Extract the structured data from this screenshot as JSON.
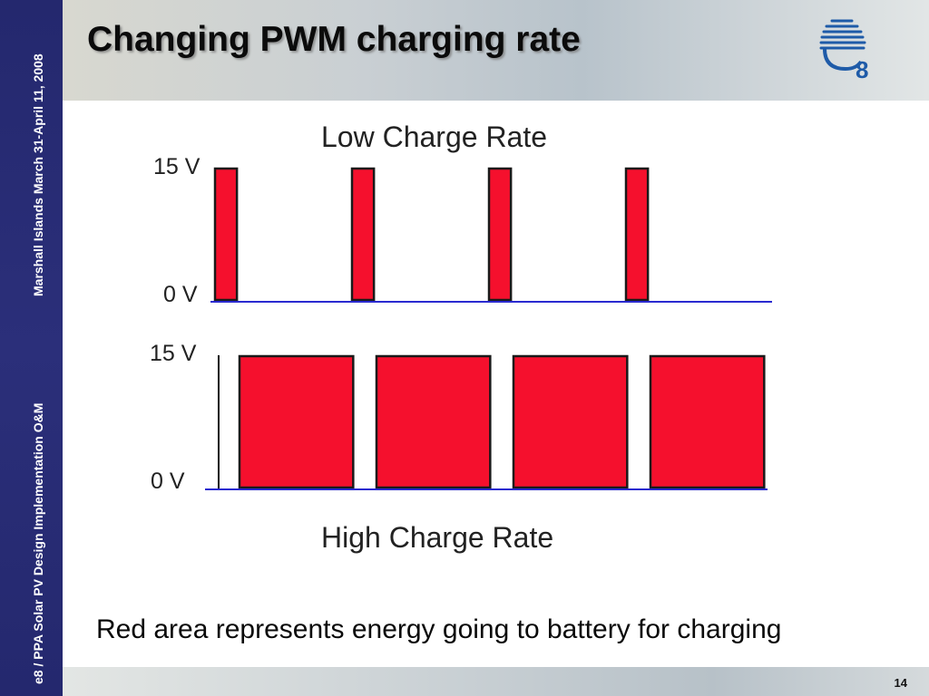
{
  "slide": {
    "title": "Changing PWM charging rate",
    "caption": "Red area represents energy going to battery for charging",
    "page_number": "14",
    "logo_text": "e8"
  },
  "sidebar": {
    "top_text": "Marshall Islands March 31-April 11, 2008",
    "bottom_text": "e8 / PPA Solar PV Design Implementation O&M"
  },
  "diagram": {
    "low": {
      "title": "Low Charge Rate",
      "high_label": "15 V",
      "low_label": "0 V",
      "pulses": 4,
      "duty_cycle": 0.16
    },
    "high": {
      "title": "High Charge Rate",
      "high_label": "15 V",
      "low_label": "0 V",
      "pulses": 4,
      "duty_cycle": 0.83
    },
    "colors": {
      "pulse_fill": "#f5102d",
      "pulse_stroke": "#1a1a1a",
      "baseline": "#2a2ad0",
      "sidebar": "#2b2f7a",
      "logo": "#1e5ba8"
    }
  }
}
